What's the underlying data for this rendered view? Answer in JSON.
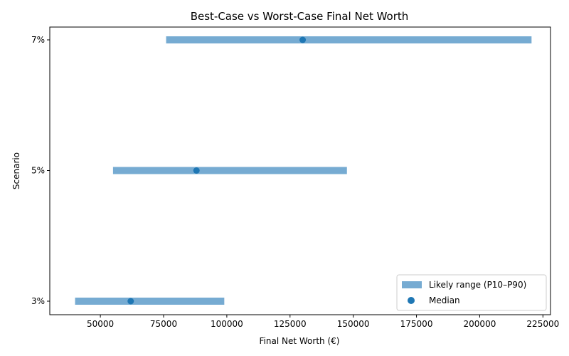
{
  "chart_data": {
    "type": "range-dot",
    "title": "Best-Case vs Worst-Case Final Net Worth",
    "xlabel": "Final Net Worth (€)",
    "ylabel": "Scenario",
    "xlim": [
      30000,
      228000
    ],
    "xticks": [
      50000,
      75000,
      100000,
      125000,
      150000,
      175000,
      200000,
      225000
    ],
    "categories": [
      "3%",
      "5%",
      "7%"
    ],
    "series": [
      {
        "name": "Likely range (P10–P90)",
        "kind": "range",
        "color": "#76abd2",
        "low": [
          40000,
          55000,
          76000
        ],
        "high": [
          99000,
          147500,
          220500
        ]
      },
      {
        "name": "Median",
        "kind": "point",
        "color": "#1f77b4",
        "values": [
          62000,
          88000,
          130000
        ]
      }
    ],
    "legend_position": "lower-right",
    "grid": false
  }
}
